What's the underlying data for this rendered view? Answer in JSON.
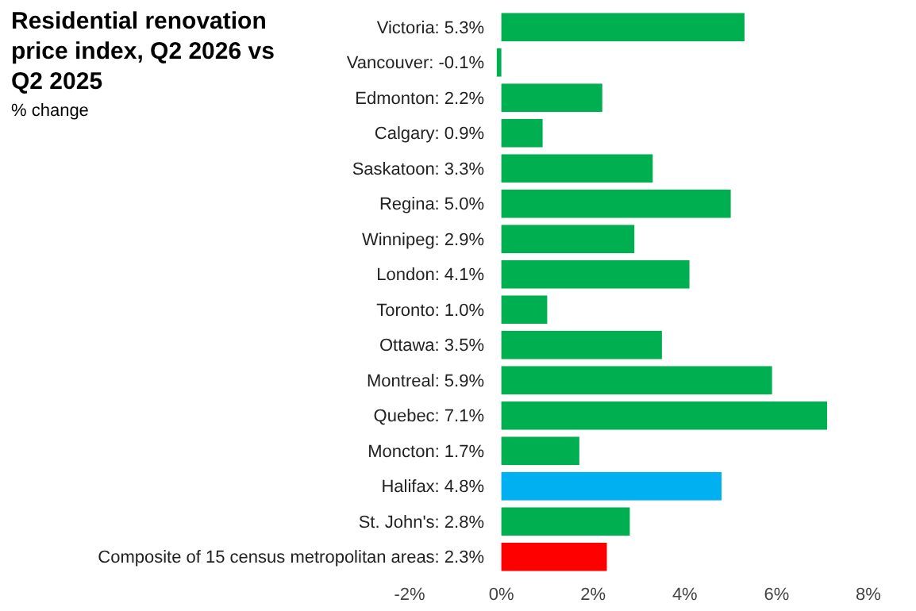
{
  "chart_data": {
    "type": "bar",
    "orientation": "horizontal",
    "title": "Residential renovation price index, Q2 2026 vs Q2 2025",
    "subtitle": "% change",
    "categories": [
      "Victoria: 5.3%",
      "Vancouver: -0.1%",
      "Edmonton: 2.2%",
      "Calgary: 0.9%",
      "Saskatoon: 3.3%",
      "Regina: 5.0%",
      "Winnipeg: 2.9%",
      "London: 4.1%",
      "Toronto: 1.0%",
      "Ottawa: 3.5%",
      "Montreal: 5.9%",
      "Quebec: 7.1%",
      "Moncton: 1.7%",
      "Halifax: 4.8%",
      "St. John's: 2.8%",
      "Composite of 15 census metropolitan areas: 2.3%"
    ],
    "values": [
      5.3,
      -0.1,
      2.2,
      0.9,
      3.3,
      5.0,
      2.9,
      4.1,
      1.0,
      3.5,
      5.9,
      7.1,
      1.7,
      4.8,
      2.8,
      2.3
    ],
    "colors": [
      "#00b050",
      "#00b050",
      "#00b050",
      "#00b050",
      "#00b050",
      "#00b050",
      "#00b050",
      "#00b050",
      "#00b050",
      "#00b050",
      "#00b050",
      "#00b050",
      "#00b050",
      "#00b0f0",
      "#00b050",
      "#ff0000"
    ],
    "xlim": [
      -2,
      8
    ],
    "xticks": [
      {
        "value": -2,
        "label": "-2%"
      },
      {
        "value": 0,
        "label": "0%"
      },
      {
        "value": 2,
        "label": "2%"
      },
      {
        "value": 4,
        "label": "4%"
      },
      {
        "value": 6,
        "label": "6%"
      },
      {
        "value": 8,
        "label": "8%"
      }
    ],
    "grid": false
  }
}
